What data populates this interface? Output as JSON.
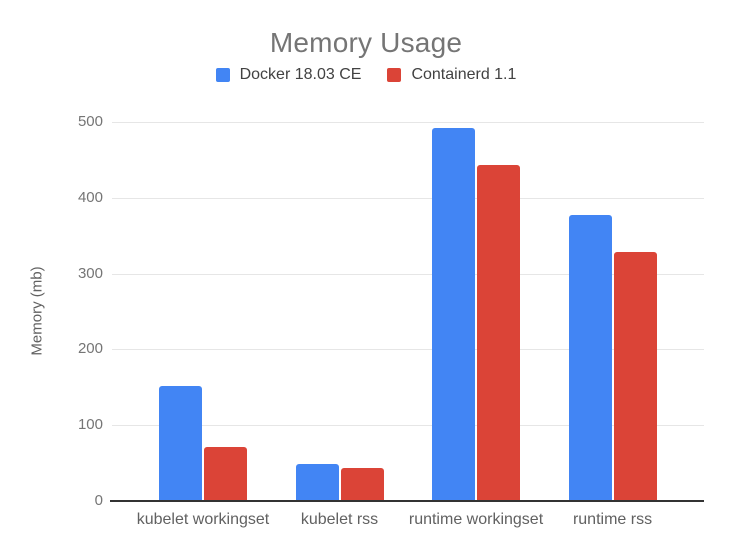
{
  "chart_data": {
    "type": "bar",
    "title": "Memory Usage",
    "xlabel": "",
    "ylabel": "Memory (mb)",
    "categories": [
      "kubelet workingset",
      "kubelet rss",
      "runtime workingset",
      "runtime rss"
    ],
    "series": [
      {
        "name": "Docker 18.03 CE",
        "color": "#4285F4",
        "values": [
          152,
          49,
          492,
          377
        ]
      },
      {
        "name": "Containerd 1.1",
        "color": "#DB4437",
        "values": [
          71,
          43,
          443,
          328
        ]
      }
    ],
    "ylim": [
      0,
      500
    ],
    "yticks": [
      0,
      100,
      200,
      300,
      400,
      500
    ],
    "grid": true,
    "legend_position": "top",
    "grid_color": "#e6e6e6",
    "axis_color": "#333333",
    "title_color": "#757575",
    "tick_label_color": "#757575",
    "category_label_color": "#616161",
    "legend_text_color": "#424242"
  }
}
